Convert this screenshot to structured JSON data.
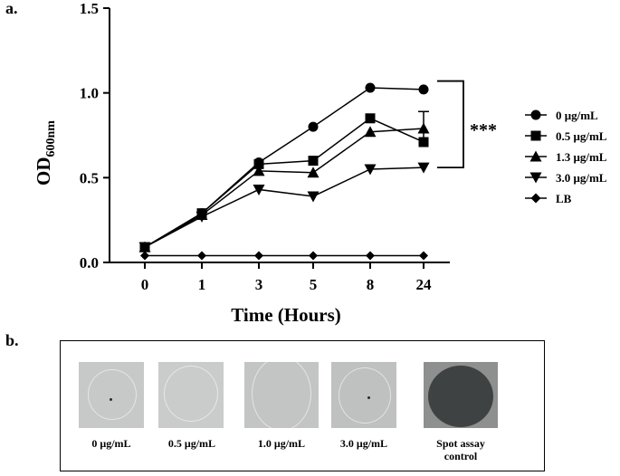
{
  "panel_a_label": "a.",
  "panel_b_label": "b.",
  "chart_data": {
    "type": "line",
    "title": "",
    "xlabel": "Time (Hours)",
    "ylabel": "OD",
    "ylabel_sub": "600nm",
    "x": [
      "0",
      "1",
      "3",
      "5",
      "8",
      "24"
    ],
    "ylim": [
      0.0,
      1.5
    ],
    "yticks": [
      "0.0",
      "0.5",
      "1.0",
      "1.5"
    ],
    "grid": false,
    "legend_position": "right",
    "significance_label": "***",
    "series": [
      {
        "name": "0 μg/mL",
        "marker": "circle",
        "values": [
          0.09,
          0.29,
          0.59,
          0.8,
          1.03,
          1.02
        ]
      },
      {
        "name": "0.5 μg/mL",
        "marker": "square",
        "values": [
          0.09,
          0.29,
          0.58,
          0.6,
          0.85,
          0.71
        ]
      },
      {
        "name": "1.3 μg/mL",
        "marker": "triangle-up",
        "values": [
          0.09,
          0.28,
          0.54,
          0.53,
          0.77,
          0.79
        ]
      },
      {
        "name": "3.0 μg/mL",
        "marker": "triangle-down",
        "values": [
          0.09,
          0.27,
          0.43,
          0.39,
          0.55,
          0.56
        ]
      },
      {
        "name": "LB",
        "marker": "diamond",
        "values": [
          0.04,
          0.04,
          0.04,
          0.04,
          0.04,
          0.04
        ]
      }
    ]
  },
  "spot_assay": {
    "items": [
      {
        "label": "0 μg/mL",
        "tone": "#c7c8c8"
      },
      {
        "label": "0.5 μg/mL",
        "tone": "#cacbcb"
      },
      {
        "label": "1.0 μg/mL",
        "tone": "#c3c4c4"
      },
      {
        "label": "3.0 μg/mL",
        "tone": "#bfc0c0"
      },
      {
        "label": "Spot assay control",
        "tone": "#8e8f8f"
      }
    ]
  }
}
